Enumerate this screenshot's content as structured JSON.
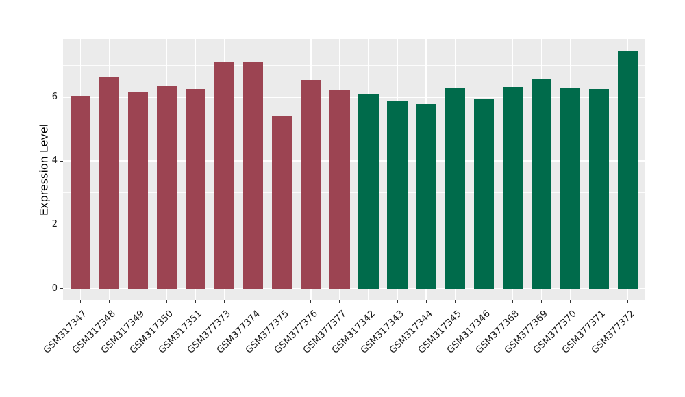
{
  "chart_data": {
    "type": "bar",
    "title": "",
    "xlabel": "",
    "ylabel": "Expression Level",
    "categories": [
      "GSM317347",
      "GSM317348",
      "GSM317349",
      "GSM317350",
      "GSM317351",
      "GSM377373",
      "GSM377374",
      "GSM377375",
      "GSM377376",
      "GSM377377",
      "GSM317342",
      "GSM317343",
      "GSM317344",
      "GSM317345",
      "GSM317346",
      "GSM377368",
      "GSM377369",
      "GSM377370",
      "GSM377371",
      "GSM377372"
    ],
    "values": [
      6.05,
      6.65,
      6.17,
      6.37,
      6.26,
      7.1,
      7.1,
      5.42,
      6.53,
      6.22,
      6.1,
      5.88,
      5.79,
      6.27,
      5.94,
      6.32,
      6.56,
      6.3,
      6.26,
      7.45
    ],
    "bar_groups": [
      "maroon",
      "maroon",
      "maroon",
      "maroon",
      "maroon",
      "maroon",
      "maroon",
      "maroon",
      "maroon",
      "maroon",
      "green",
      "green",
      "green",
      "green",
      "green",
      "green",
      "green",
      "green",
      "green",
      "green"
    ],
    "group_colors": {
      "maroon": "#9c4452",
      "green": "#006b4b"
    },
    "yticks": [
      0,
      2,
      4,
      6
    ],
    "minor_gridlines": [
      1,
      3,
      5,
      7
    ],
    "ylim": [
      -0.37,
      7.82
    ],
    "bar_width_fraction": 0.7,
    "grid": true,
    "legend_position": "none",
    "panel_background": "#ebebeb",
    "gridline_color": "#ffffff",
    "tick_color": "#333333",
    "axis_text_color": "#1a1a1a",
    "axis_title_color": "#000000"
  }
}
